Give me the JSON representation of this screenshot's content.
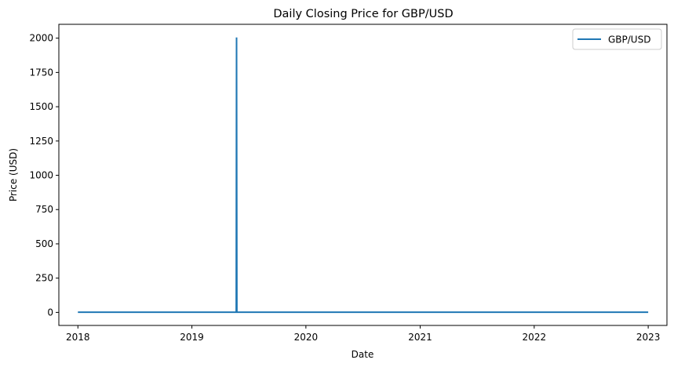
{
  "chart_data": {
    "type": "line",
    "title": "Daily Closing Price for GBP/USD",
    "xlabel": "Date",
    "ylabel": "Price (USD)",
    "xlim": [
      "2017-11-01",
      "2023-03-02"
    ],
    "ylim": [
      -95,
      2101
    ],
    "x_ticks": [
      "2018",
      "2019",
      "2020",
      "2021",
      "2022",
      "2023"
    ],
    "y_ticks": [
      0,
      250,
      500,
      750,
      1000,
      1250,
      1500,
      1750,
      2000
    ],
    "grid": false,
    "legend": "top-right",
    "series_color": "#1f77b4",
    "series": [
      {
        "name": "GBP/USD",
        "x": [
          "2018-01-01",
          "2019-05-23",
          "2019-05-24",
          "2019-05-25",
          "2023-01-01"
        ],
        "y": [
          1.35,
          1.27,
          2005,
          1.27,
          1.21
        ]
      }
    ]
  }
}
